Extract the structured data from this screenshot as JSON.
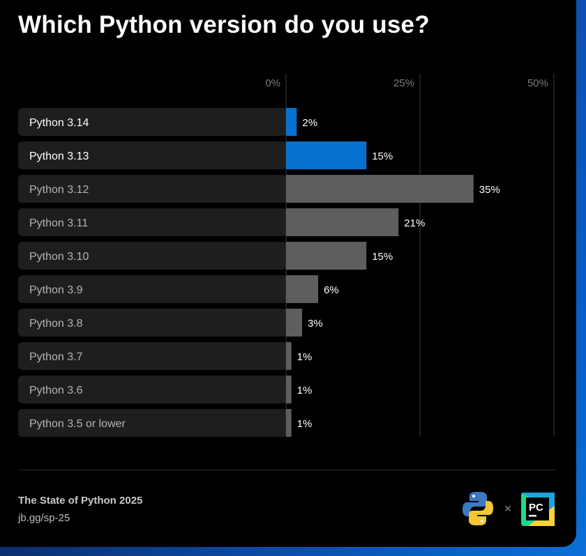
{
  "title": "Which Python version do you use?",
  "chart_data": {
    "type": "bar",
    "orientation": "horizontal",
    "title": "Which Python version do you use?",
    "categories": [
      "Python 3.14",
      "Python 3.13",
      "Python 3.12",
      "Python 3.11",
      "Python 3.10",
      "Python 3.9",
      "Python 3.8",
      "Python 3.7",
      "Python 3.6",
      "Python 3.5 or lower"
    ],
    "values": [
      2,
      15,
      35,
      21,
      15,
      6,
      3,
      1,
      1,
      1
    ],
    "value_labels": [
      "2%",
      "15%",
      "35%",
      "21%",
      "15%",
      "6%",
      "3%",
      "1%",
      "1%",
      "1%"
    ],
    "highlighted": [
      true,
      true,
      false,
      false,
      false,
      false,
      false,
      false,
      false,
      false
    ],
    "xlim": [
      0,
      50
    ],
    "ticks": [
      0,
      25,
      50
    ],
    "tick_labels": [
      "0%",
      "25%",
      "50%"
    ],
    "grid": true,
    "colors": {
      "highlight": "#0870cf",
      "default": "#5e5e5e",
      "label_highlight": "#ffffff",
      "label_default": "#b5b5b5",
      "row_bg": "#1e1e1e",
      "tick_text": "#7d7d7d",
      "gridline": "#3a3a3a"
    }
  },
  "footer": {
    "brand": "The State of Python 2025",
    "link": "jb.gg/sp-25",
    "logo_python": "python-logo-icon",
    "logo_separator": "×",
    "logo_pycharm": "pycharm-logo-icon",
    "logo_pycharm_text": "PC"
  }
}
